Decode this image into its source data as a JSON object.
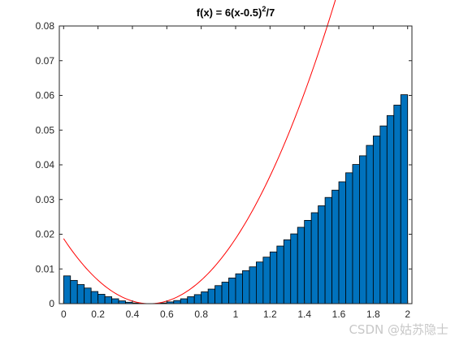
{
  "chart_data": {
    "type": "bar",
    "title_main": "f(x) = 6(x-0.5)",
    "title_sup": "2",
    "title_tail": "/7",
    "xlim": [
      -0.025,
      2.025
    ],
    "ylim": [
      0,
      0.08
    ],
    "x_ticks": [
      "0",
      "0.2",
      "0.4",
      "0.6",
      "0.8",
      "1",
      "1.2",
      "1.4",
      "1.6",
      "1.8",
      "2"
    ],
    "y_ticks": [
      "0",
      "0.01",
      "0.02",
      "0.03",
      "0.04",
      "0.05",
      "0.06",
      "0.07",
      "0.08"
    ],
    "bin_width": 0.04,
    "x": [
      0.02,
      0.06,
      0.1,
      0.14,
      0.18,
      0.22,
      0.26,
      0.3,
      0.34,
      0.38,
      0.42,
      0.46,
      0.5,
      0.54,
      0.58,
      0.62,
      0.66,
      0.7,
      0.74,
      0.78,
      0.82,
      0.86,
      0.9,
      0.94,
      0.98,
      1.02,
      1.06,
      1.1,
      1.14,
      1.18,
      1.22,
      1.26,
      1.3,
      1.34,
      1.38,
      1.42,
      1.46,
      1.5,
      1.54,
      1.58,
      1.62,
      1.66,
      1.7,
      1.74,
      1.78,
      1.82,
      1.86,
      1.9,
      1.94,
      1.98
    ],
    "values": [
      0.008,
      0.0067,
      0.0055,
      0.0045,
      0.0035,
      0.0027,
      0.002,
      0.0014,
      0.0008,
      0.0004,
      0.0002,
      0.0,
      0.0,
      0.0,
      0.0002,
      0.0005,
      0.0009,
      0.0014,
      0.002,
      0.0026,
      0.0034,
      0.0042,
      0.0052,
      0.0062,
      0.0074,
      0.0086,
      0.0095,
      0.0106,
      0.012,
      0.0134,
      0.0149,
      0.0166,
      0.0184,
      0.0201,
      0.022,
      0.024,
      0.0262,
      0.0282,
      0.0306,
      0.0327,
      0.0351,
      0.0377,
      0.0401,
      0.0426,
      0.0456,
      0.0483,
      0.0512,
      0.0542,
      0.0572,
      0.0602
    ],
    "bar_color": "#0072bd",
    "bar_edge": "#000000",
    "curve": {
      "name": "f(x) = 6(x-0.5)^2/7",
      "color": "#ff0000"
    },
    "grid": false
  },
  "watermark": "CSDN @姑苏隐士"
}
